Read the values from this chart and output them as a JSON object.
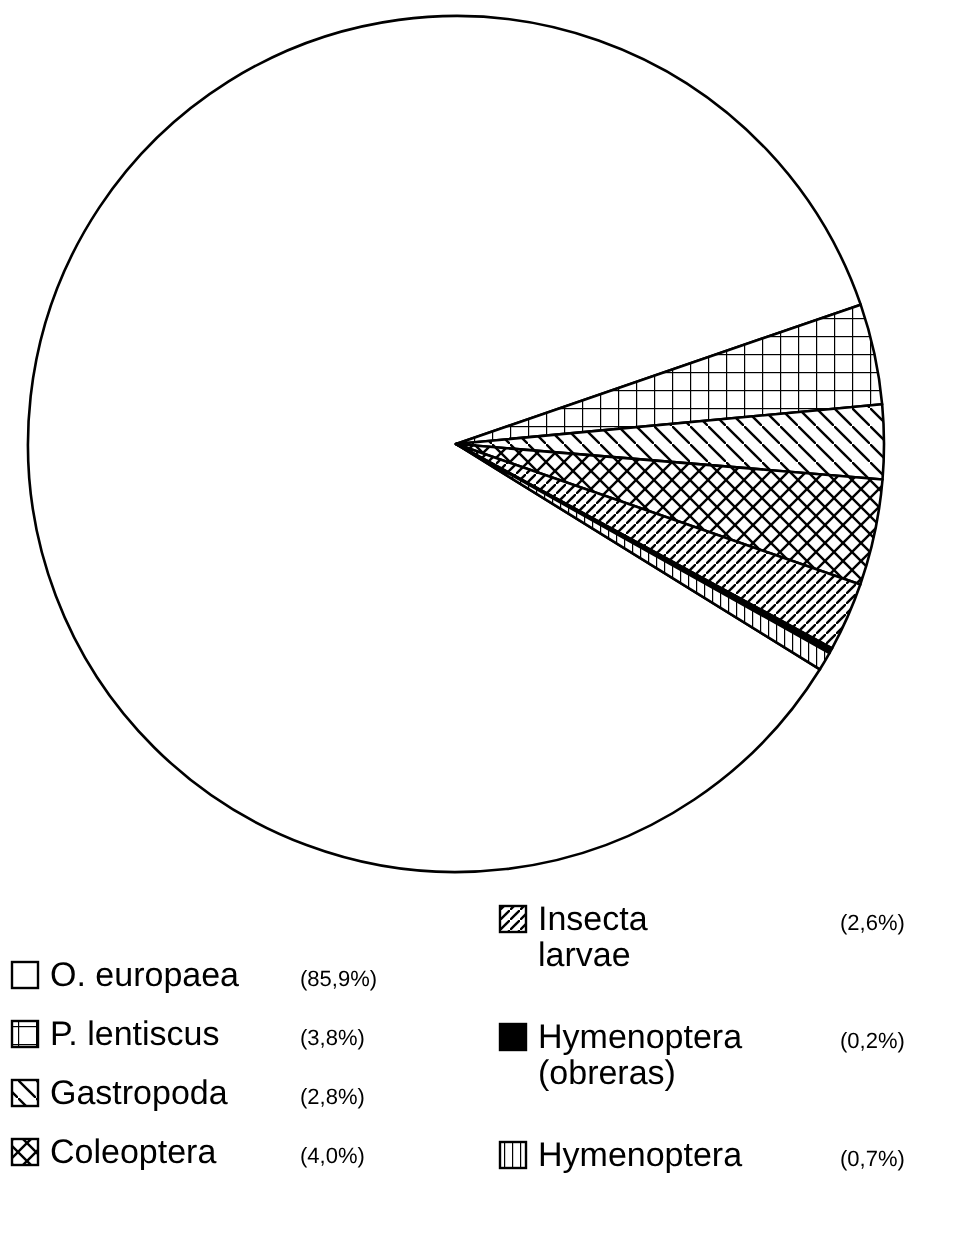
{
  "chart_data": {
    "type": "pie",
    "categories": [
      "O. europaea",
      "P. lentiscus",
      "Gastropoda",
      "Coleoptera",
      "Insecta larvae",
      "Hymenoptera (obreras)",
      "Hymenoptera"
    ],
    "values": [
      85.9,
      3.8,
      2.8,
      4.0,
      2.6,
      0.2,
      0.7
    ],
    "value_labels": [
      "(85,9%)",
      "(3,8%)",
      "(2,8%)",
      "(4,0%)",
      "(2,6%)",
      "(0,2%)",
      "(0,7%)"
    ],
    "legend": "bottom"
  }
}
